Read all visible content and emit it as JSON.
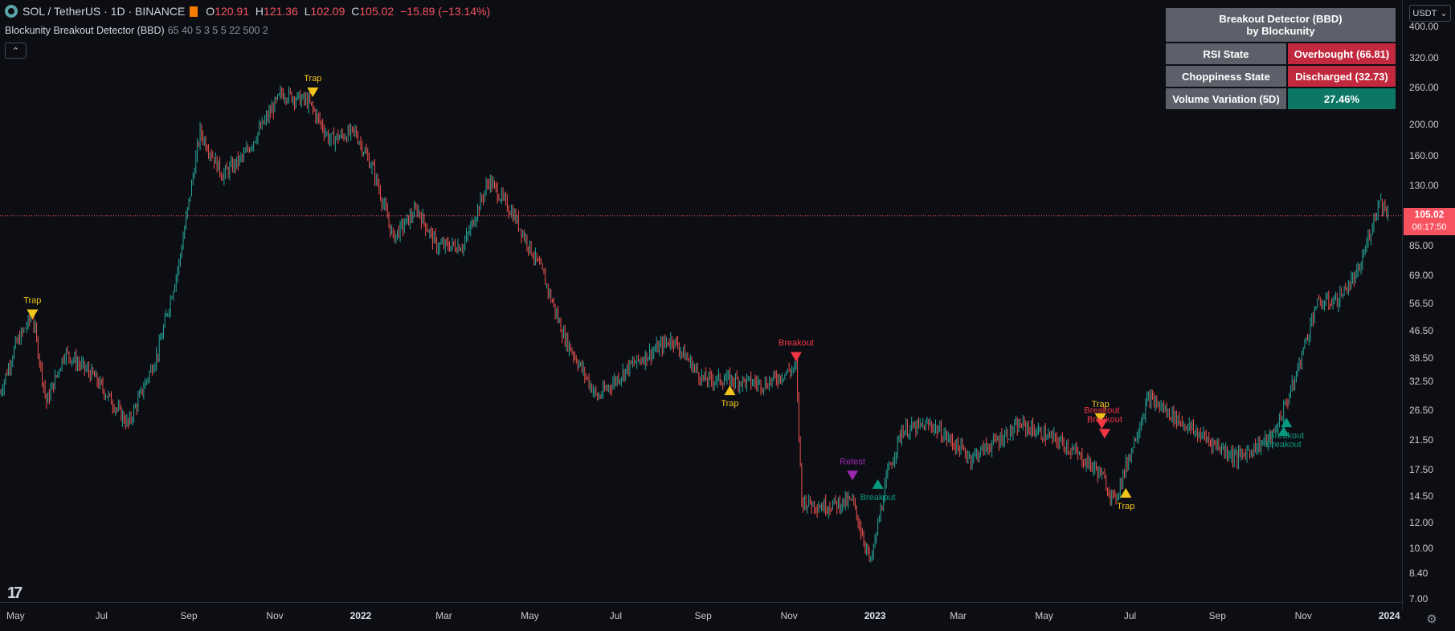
{
  "legend": {
    "symbol": "SOL / TetherUS · 1D · BINANCE",
    "open_key": "O",
    "open": "120.91",
    "high_key": "H",
    "high": "121.36",
    "low_key": "L",
    "low": "102.09",
    "close_key": "C",
    "close": "105.02",
    "change": "−15.89 (−13.14%)",
    "indicator_name": "Blockunity Breakout Detector (BBD)",
    "indicator_params": "65 40 5 3 5 5 22 500 2"
  },
  "table": {
    "title_line1": "Breakout Detector (BBD)",
    "title_line2": "by Blockunity",
    "rows": [
      {
        "label": "RSI State",
        "value": "Overbought (66.81)",
        "status": "red"
      },
      {
        "label": "Choppiness State",
        "value": "Discharged (32.73)",
        "status": "red"
      },
      {
        "label": "Volume Variation (5D)",
        "value": "27.46%",
        "status": "green"
      }
    ]
  },
  "right_axis": {
    "currency": "USDT",
    "ticks": [
      "400.00",
      "320.00",
      "260.00",
      "200.00",
      "160.00",
      "130.00",
      "85.00",
      "69.00",
      "56.50",
      "46.50",
      "38.50",
      "32.50",
      "26.50",
      "21.50",
      "17.50",
      "14.50",
      "12.00",
      "10.00",
      "8.40",
      "7.00"
    ],
    "last_price": "105.02",
    "countdown": "06:17:50"
  },
  "bottom_axis": {
    "ticks": [
      {
        "label": "May",
        "bold": false
      },
      {
        "label": "Jul",
        "bold": false
      },
      {
        "label": "Sep",
        "bold": false
      },
      {
        "label": "Nov",
        "bold": false
      },
      {
        "label": "2022",
        "bold": true
      },
      {
        "label": "Mar",
        "bold": false
      },
      {
        "label": "May",
        "bold": false
      },
      {
        "label": "Jul",
        "bold": false
      },
      {
        "label": "Sep",
        "bold": false
      },
      {
        "label": "Nov",
        "bold": false
      },
      {
        "label": "2023",
        "bold": true
      },
      {
        "label": "Mar",
        "bold": false
      },
      {
        "label": "May",
        "bold": false
      },
      {
        "label": "Jul",
        "bold": false
      },
      {
        "label": "Sep",
        "bold": false
      },
      {
        "label": "Nov",
        "bold": false
      },
      {
        "label": "2024",
        "bold": true
      }
    ]
  },
  "colors": {
    "up": "#26a69a",
    "down": "#ef5350",
    "trap": "#f0c419",
    "breakout_down": "#f23645",
    "breakout_up": "#089981",
    "retest": "#9c27b0",
    "price_line": "#f7525f"
  },
  "markers": [
    {
      "label": "Trap",
      "kind": "trap",
      "direction": "down",
      "date": "2021-05-13",
      "price": 50.0
    },
    {
      "label": "Trap",
      "kind": "trap",
      "direction": "down",
      "date": "2021-11-28",
      "price": 240.0
    },
    {
      "label": "Trap",
      "kind": "trap",
      "direction": "up",
      "date": "2022-09-20",
      "price": 32.0
    },
    {
      "label": "Breakout",
      "kind": "breakout_down",
      "direction": "down",
      "date": "2022-11-06",
      "price": 37.0
    },
    {
      "label": "Retest",
      "kind": "retest",
      "direction": "down",
      "date": "2022-12-16",
      "price": 16.0
    },
    {
      "label": "Breakout",
      "kind": "breakout_up",
      "direction": "up",
      "date": "2023-01-03",
      "price": 16.5
    },
    {
      "label": "Trap",
      "kind": "trap",
      "direction": "down",
      "date": "2023-06-10",
      "price": 24.0
    },
    {
      "label": "Breakout",
      "kind": "breakout_down",
      "direction": "down",
      "date": "2023-06-11",
      "price": 23.0
    },
    {
      "label": "Breakout",
      "kind": "breakout_down",
      "direction": "down",
      "date": "2023-06-13",
      "price": 21.5
    },
    {
      "label": "Trap",
      "kind": "trap",
      "direction": "up",
      "date": "2023-06-28",
      "price": 15.5
    },
    {
      "label": "Breakout",
      "kind": "breakout_up",
      "direction": "up",
      "date": "2023-10-20",
      "price": 25.5
    },
    {
      "label": "Breakout",
      "kind": "breakout_up",
      "direction": "up",
      "date": "2023-10-18",
      "price": 24.0
    }
  ],
  "chart_data": {
    "type": "candlestick",
    "scale": "log",
    "ylim": [
      7.0,
      400.0
    ],
    "xlim": [
      "2021-04-20",
      "2024-01-10"
    ],
    "last_close": 105.02,
    "series": [
      {
        "date": "2021-04-20",
        "close": 30
      },
      {
        "date": "2021-05-01",
        "close": 42
      },
      {
        "date": "2021-05-13",
        "close": 52
      },
      {
        "date": "2021-05-23",
        "close": 28
      },
      {
        "date": "2021-06-05",
        "close": 40
      },
      {
        "date": "2021-06-25",
        "close": 34
      },
      {
        "date": "2021-07-20",
        "close": 24
      },
      {
        "date": "2021-08-10",
        "close": 40
      },
      {
        "date": "2021-08-25",
        "close": 75
      },
      {
        "date": "2021-09-09",
        "close": 190
      },
      {
        "date": "2021-09-25",
        "close": 140
      },
      {
        "date": "2021-10-10",
        "close": 160
      },
      {
        "date": "2021-11-06",
        "close": 250
      },
      {
        "date": "2021-11-25",
        "close": 235
      },
      {
        "date": "2021-12-10",
        "close": 180
      },
      {
        "date": "2021-12-28",
        "close": 190
      },
      {
        "date": "2022-01-10",
        "close": 145
      },
      {
        "date": "2022-01-24",
        "close": 90
      },
      {
        "date": "2022-02-10",
        "close": 110
      },
      {
        "date": "2022-02-24",
        "close": 85
      },
      {
        "date": "2022-03-15",
        "close": 85
      },
      {
        "date": "2022-04-02",
        "close": 135
      },
      {
        "date": "2022-04-20",
        "close": 105
      },
      {
        "date": "2022-05-10",
        "close": 70
      },
      {
        "date": "2022-05-25",
        "close": 45
      },
      {
        "date": "2022-06-18",
        "close": 29
      },
      {
        "date": "2022-07-10",
        "close": 36
      },
      {
        "date": "2022-08-10",
        "close": 44
      },
      {
        "date": "2022-09-01",
        "close": 33
      },
      {
        "date": "2022-09-20",
        "close": 33
      },
      {
        "date": "2022-10-15",
        "close": 32
      },
      {
        "date": "2022-11-06",
        "close": 36
      },
      {
        "date": "2022-11-10",
        "close": 14
      },
      {
        "date": "2022-11-25",
        "close": 13.5
      },
      {
        "date": "2022-12-16",
        "close": 14
      },
      {
        "date": "2022-12-29",
        "close": 9
      },
      {
        "date": "2023-01-10",
        "close": 17
      },
      {
        "date": "2023-01-20",
        "close": 23
      },
      {
        "date": "2023-02-10",
        "close": 24
      },
      {
        "date": "2023-03-10",
        "close": 19
      },
      {
        "date": "2023-04-15",
        "close": 24
      },
      {
        "date": "2023-05-15",
        "close": 21
      },
      {
        "date": "2023-06-10",
        "close": 17
      },
      {
        "date": "2023-06-20",
        "close": 14
      },
      {
        "date": "2023-07-14",
        "close": 29
      },
      {
        "date": "2023-08-15",
        "close": 23
      },
      {
        "date": "2023-09-15",
        "close": 19
      },
      {
        "date": "2023-10-10",
        "close": 22
      },
      {
        "date": "2023-10-25",
        "close": 32
      },
      {
        "date": "2023-11-10",
        "close": 56
      },
      {
        "date": "2023-11-25",
        "close": 58
      },
      {
        "date": "2023-12-10",
        "close": 70
      },
      {
        "date": "2023-12-25",
        "close": 118
      },
      {
        "date": "2024-01-01",
        "close": 105
      }
    ]
  }
}
